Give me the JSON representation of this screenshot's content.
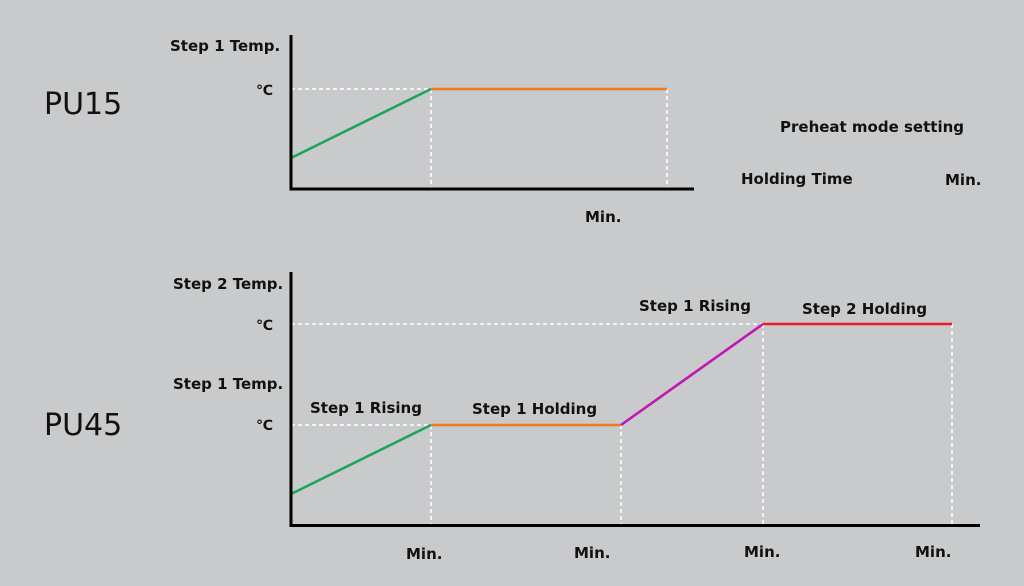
{
  "colors": {
    "background": "#c9cacb",
    "rising": "#1aa65a",
    "step1_holding": "#ee7a22",
    "step2_rising": "#c216b4",
    "step2_holding": "#ec1c24",
    "guide": "#ffffff",
    "axis": "#000000"
  },
  "pu15": {
    "model": "PU15",
    "y_label": "Step 1 Temp.",
    "temp_unit": "℃",
    "x_unit": "Min."
  },
  "side_panel": {
    "title": "Preheat mode setting",
    "holding_label": "Holding Time",
    "holding_unit": "Min."
  },
  "pu45": {
    "model": "PU45",
    "y_label_step2": "Step 2 Temp.",
    "temp_unit_step2": "℃",
    "y_label_step1": "Step 1 Temp.",
    "temp_unit_step1": "℃",
    "step1_rising": "Step 1 Rising",
    "step1_holding": "Step 1 Holding",
    "step2_rising": "Step 1 Rising",
    "step2_holding": "Step 2 Holding",
    "x_units": [
      "Min.",
      "Min.",
      "Min.",
      "Min."
    ]
  }
}
